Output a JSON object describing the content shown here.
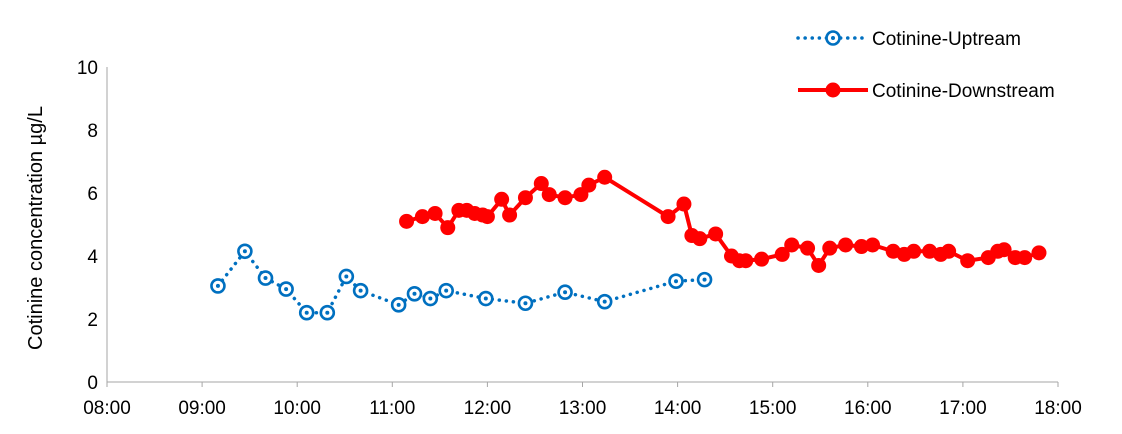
{
  "chart_data": {
    "type": "line",
    "title": "",
    "xlabel": "",
    "ylabel": "Cotinine concentration µg/L",
    "ylim": [
      0,
      10
    ],
    "yticks": [
      "0",
      "2",
      "4",
      "6",
      "8",
      "10"
    ],
    "xlim": [
      "08:00",
      "18:00"
    ],
    "xticks": [
      "08:00",
      "09:00",
      "10:00",
      "11:00",
      "12:00",
      "13:00",
      "14:00",
      "15:00",
      "16:00",
      "17:00",
      "18:00"
    ],
    "grid": false,
    "legend_position": "top-right",
    "series": [
      {
        "name": "Cotinine-Uptream",
        "color": "#0070C0",
        "line_style": "dotted",
        "marker": "open-circle-dot",
        "points": [
          [
            "09:10",
            3.05
          ],
          [
            "09:27",
            4.15
          ],
          [
            "09:40",
            3.3
          ],
          [
            "09:53",
            2.95
          ],
          [
            "10:06",
            2.2
          ],
          [
            "10:19",
            2.2
          ],
          [
            "10:31",
            3.35
          ],
          [
            "10:40",
            2.9
          ],
          [
            "11:04",
            2.45
          ],
          [
            "11:14",
            2.8
          ],
          [
            "11:24",
            2.65
          ],
          [
            "11:34",
            2.9
          ],
          [
            "11:59",
            2.65
          ],
          [
            "12:24",
            2.5
          ],
          [
            "12:49",
            2.85
          ],
          [
            "13:14",
            2.55
          ],
          [
            "13:59",
            3.2
          ],
          [
            "14:17",
            3.25
          ]
        ]
      },
      {
        "name": "Cotinine-Downstream",
        "color": "#FF0000",
        "line_style": "solid",
        "marker": "filled-circle",
        "points": [
          [
            "11:09",
            5.1
          ],
          [
            "11:19",
            5.25
          ],
          [
            "11:27",
            5.35
          ],
          [
            "11:35",
            4.9
          ],
          [
            "11:42",
            5.45
          ],
          [
            "11:47",
            5.45
          ],
          [
            "11:52",
            5.35
          ],
          [
            "11:57",
            5.3
          ],
          [
            "12:00",
            5.25
          ],
          [
            "12:09",
            5.8
          ],
          [
            "12:14",
            5.3
          ],
          [
            "12:24",
            5.85
          ],
          [
            "12:34",
            6.3
          ],
          [
            "12:39",
            5.95
          ],
          [
            "12:49",
            5.85
          ],
          [
            "12:59",
            5.95
          ],
          [
            "13:04",
            6.25
          ],
          [
            "13:14",
            6.5
          ],
          [
            "13:54",
            5.25
          ],
          [
            "14:04",
            5.65
          ],
          [
            "14:09",
            4.65
          ],
          [
            "14:14",
            4.55
          ],
          [
            "14:24",
            4.7
          ],
          [
            "14:34",
            4.0
          ],
          [
            "14:39",
            3.85
          ],
          [
            "14:43",
            3.85
          ],
          [
            "14:53",
            3.9
          ],
          [
            "15:06",
            4.05
          ],
          [
            "15:12",
            4.35
          ],
          [
            "15:22",
            4.25
          ],
          [
            "15:29",
            3.7
          ],
          [
            "15:36",
            4.25
          ],
          [
            "15:46",
            4.35
          ],
          [
            "15:56",
            4.3
          ],
          [
            "16:03",
            4.35
          ],
          [
            "16:16",
            4.15
          ],
          [
            "16:23",
            4.05
          ],
          [
            "16:29",
            4.15
          ],
          [
            "16:39",
            4.15
          ],
          [
            "16:46",
            4.05
          ],
          [
            "16:51",
            4.15
          ],
          [
            "17:03",
            3.85
          ],
          [
            "17:16",
            3.95
          ],
          [
            "17:22",
            4.15
          ],
          [
            "17:26",
            4.2
          ],
          [
            "17:33",
            3.95
          ],
          [
            "17:39",
            3.95
          ],
          [
            "17:48",
            4.1
          ]
        ]
      }
    ]
  }
}
